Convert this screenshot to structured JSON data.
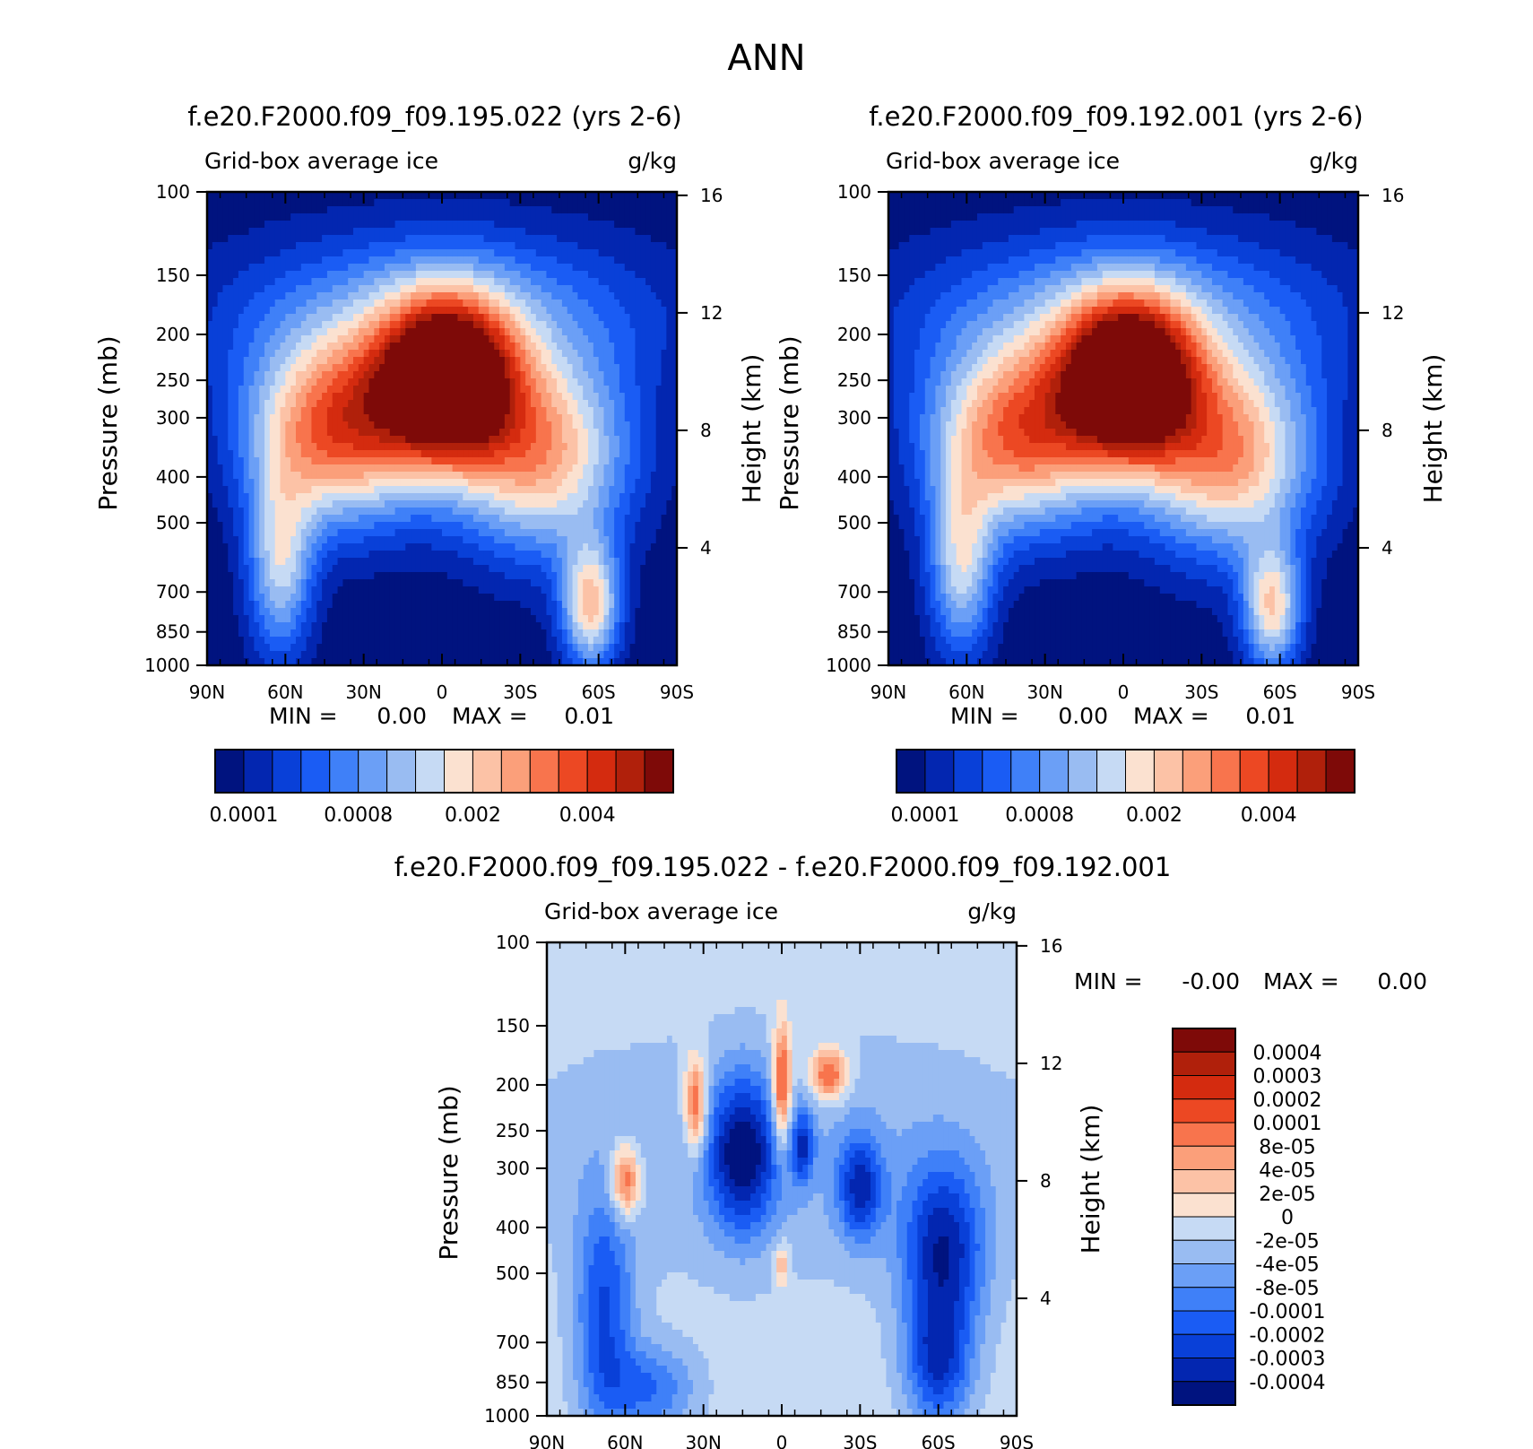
{
  "page_title": "ANN",
  "colors": {
    "seq": [
      "#00137f",
      "#0326b0",
      "#0940d8",
      "#1a5cf4",
      "#3f80f8",
      "#6b9ff6",
      "#99bcf2",
      "#c6daf4",
      "#fbe1d0",
      "#fcc2a6",
      "#fb9f7a",
      "#f8744d",
      "#ec4823",
      "#d42b0f",
      "#b0200b",
      "#7e0a08"
    ],
    "diff": [
      "#00137f",
      "#0326b0",
      "#0940d8",
      "#1a5cf4",
      "#3f80f8",
      "#6b9ff6",
      "#99bcf2",
      "#c6daf4",
      "#fbe1d0",
      "#fcc2a6",
      "#fb9f7a",
      "#f8744d",
      "#ec4823",
      "#d42b0f",
      "#b0200b",
      "#7e0a08"
    ]
  },
  "chart_data": [
    {
      "type": "contour",
      "title": "f.e20.F2000.f09_f09.195.022 (yrs 2-6)",
      "left_label": "Grid-box average ice",
      "right_label": "g/kg",
      "ylabel": "Pressure (mb)",
      "ylabel_right": "Height (km)",
      "x_ticks": [
        "90N",
        "60N",
        "30N",
        "0",
        "30S",
        "60S",
        "90S"
      ],
      "x_values": [
        90,
        60,
        30,
        0,
        -30,
        -60,
        -90
      ],
      "y_ticks": [
        100,
        150,
        200,
        250,
        300,
        400,
        500,
        700,
        850,
        1000
      ],
      "height_ticks": [
        16,
        12,
        8,
        4
      ],
      "ylim": [
        100,
        1000
      ],
      "min_label": "MIN =",
      "min_value": "0.00",
      "max_label": "MAX =",
      "max_value": "0.01",
      "colorbar_labels": [
        "0.0001",
        "0.0008",
        "0.002",
        "0.004"
      ],
      "field": {
        "background_level": 0,
        "blobs": [
          {
            "lat": -2,
            "p": 250,
            "sx": 18,
            "sy": 0.28,
            "a": 17
          },
          {
            "lat": 40,
            "p": 320,
            "sx": 24,
            "sy": 0.32,
            "a": 12
          },
          {
            "lat": -38,
            "p": 360,
            "sx": 24,
            "sy": 0.34,
            "a": 10
          },
          {
            "lat": 62,
            "p": 620,
            "sx": 9,
            "sy": 0.32,
            "a": 7
          },
          {
            "lat": -57,
            "p": 750,
            "sx": 8,
            "sy": 0.22,
            "a": 9
          },
          {
            "lat": 0,
            "p": 180,
            "sx": 60,
            "sy": 0.3,
            "a": 5
          }
        ]
      }
    },
    {
      "type": "contour",
      "title": "f.e20.F2000.f09_f09.192.001 (yrs 2-6)",
      "left_label": "Grid-box average ice",
      "right_label": "g/kg",
      "ylabel": "Pressure (mb)",
      "ylabel_right": "Height (km)",
      "x_ticks": [
        "90N",
        "60N",
        "30N",
        "0",
        "30S",
        "60S",
        "90S"
      ],
      "x_values": [
        90,
        60,
        30,
        0,
        -30,
        -60,
        -90
      ],
      "y_ticks": [
        100,
        150,
        200,
        250,
        300,
        400,
        500,
        700,
        850,
        1000
      ],
      "height_ticks": [
        16,
        12,
        8,
        4
      ],
      "ylim": [
        100,
        1000
      ],
      "min_label": "MIN =",
      "min_value": "0.00",
      "max_label": "MAX =",
      "max_value": "0.01",
      "colorbar_labels": [
        "0.0001",
        "0.0008",
        "0.002",
        "0.004"
      ],
      "field": {
        "background_level": 0,
        "blobs": [
          {
            "lat": -2,
            "p": 250,
            "sx": 18,
            "sy": 0.28,
            "a": 17
          },
          {
            "lat": 40,
            "p": 330,
            "sx": 24,
            "sy": 0.32,
            "a": 11.5
          },
          {
            "lat": -40,
            "p": 360,
            "sx": 24,
            "sy": 0.34,
            "a": 10.5
          },
          {
            "lat": 62,
            "p": 620,
            "sx": 9,
            "sy": 0.32,
            "a": 7
          },
          {
            "lat": -57,
            "p": 760,
            "sx": 8,
            "sy": 0.22,
            "a": 8.5
          },
          {
            "lat": 0,
            "p": 180,
            "sx": 60,
            "sy": 0.3,
            "a": 5
          }
        ]
      }
    },
    {
      "type": "contour",
      "title": "f.e20.F2000.f09_f09.195.022 - f.e20.F2000.f09_f09.192.001",
      "left_label": "Grid-box average ice",
      "right_label": "g/kg",
      "ylabel": "Pressure (mb)",
      "ylabel_right": "Height (km)",
      "x_ticks": [
        "90N",
        "60N",
        "30N",
        "0",
        "30S",
        "60S",
        "90S"
      ],
      "x_values": [
        90,
        60,
        30,
        0,
        -30,
        -60,
        -90
      ],
      "y_ticks": [
        100,
        150,
        200,
        250,
        300,
        400,
        500,
        700,
        850,
        1000
      ],
      "height_ticks": [
        16,
        12,
        8,
        4
      ],
      "ylim": [
        100,
        1000
      ],
      "min_label": "MIN =",
      "min_value": "-0.00",
      "max_label": "MAX =",
      "max_value": "0.00",
      "colorbar_labels": [
        "0.0004",
        "0.0003",
        "0.0002",
        "0.0001",
        "8e-05",
        "4e-05",
        "2e-05",
        "0",
        "-2e-05",
        "-4e-05",
        "-8e-05",
        "-0.0001",
        "-0.0002",
        "-0.0003",
        "-0.0004"
      ],
      "field": {
        "background_level": 7.6,
        "blobs": [
          {
            "lat": 60,
            "p": 320,
            "sx": 4,
            "sy": 0.12,
            "a": 5.5
          },
          {
            "lat": 33,
            "p": 220,
            "sx": 3,
            "sy": 0.16,
            "a": 5.5
          },
          {
            "lat": 0,
            "p": 200,
            "sx": 2.5,
            "sy": 0.2,
            "a": 6.5
          },
          {
            "lat": -18,
            "p": 190,
            "sx": 5,
            "sy": 0.09,
            "a": 5.5
          },
          {
            "lat": 0,
            "p": 480,
            "sx": 2,
            "sy": 0.08,
            "a": 3
          },
          {
            "lat": 15,
            "p": 280,
            "sx": 9,
            "sy": 0.26,
            "a": -6.5
          },
          {
            "lat": -8,
            "p": 270,
            "sx": 3,
            "sy": 0.12,
            "a": -4.5
          },
          {
            "lat": -30,
            "p": 330,
            "sx": 6,
            "sy": 0.18,
            "a": -5
          },
          {
            "lat": -62,
            "p": 450,
            "sx": 11,
            "sy": 0.3,
            "a": -6
          },
          {
            "lat": -60,
            "p": 780,
            "sx": 9,
            "sy": 0.22,
            "a": -5
          },
          {
            "lat": 68,
            "p": 620,
            "sx": 8,
            "sy": 0.42,
            "a": -4.5
          },
          {
            "lat": 50,
            "p": 880,
            "sx": 12,
            "sy": 0.15,
            "a": -3.5
          },
          {
            "lat": 0,
            "p": 280,
            "sx": 80,
            "sy": 0.45,
            "a": -1.5
          }
        ]
      }
    }
  ]
}
